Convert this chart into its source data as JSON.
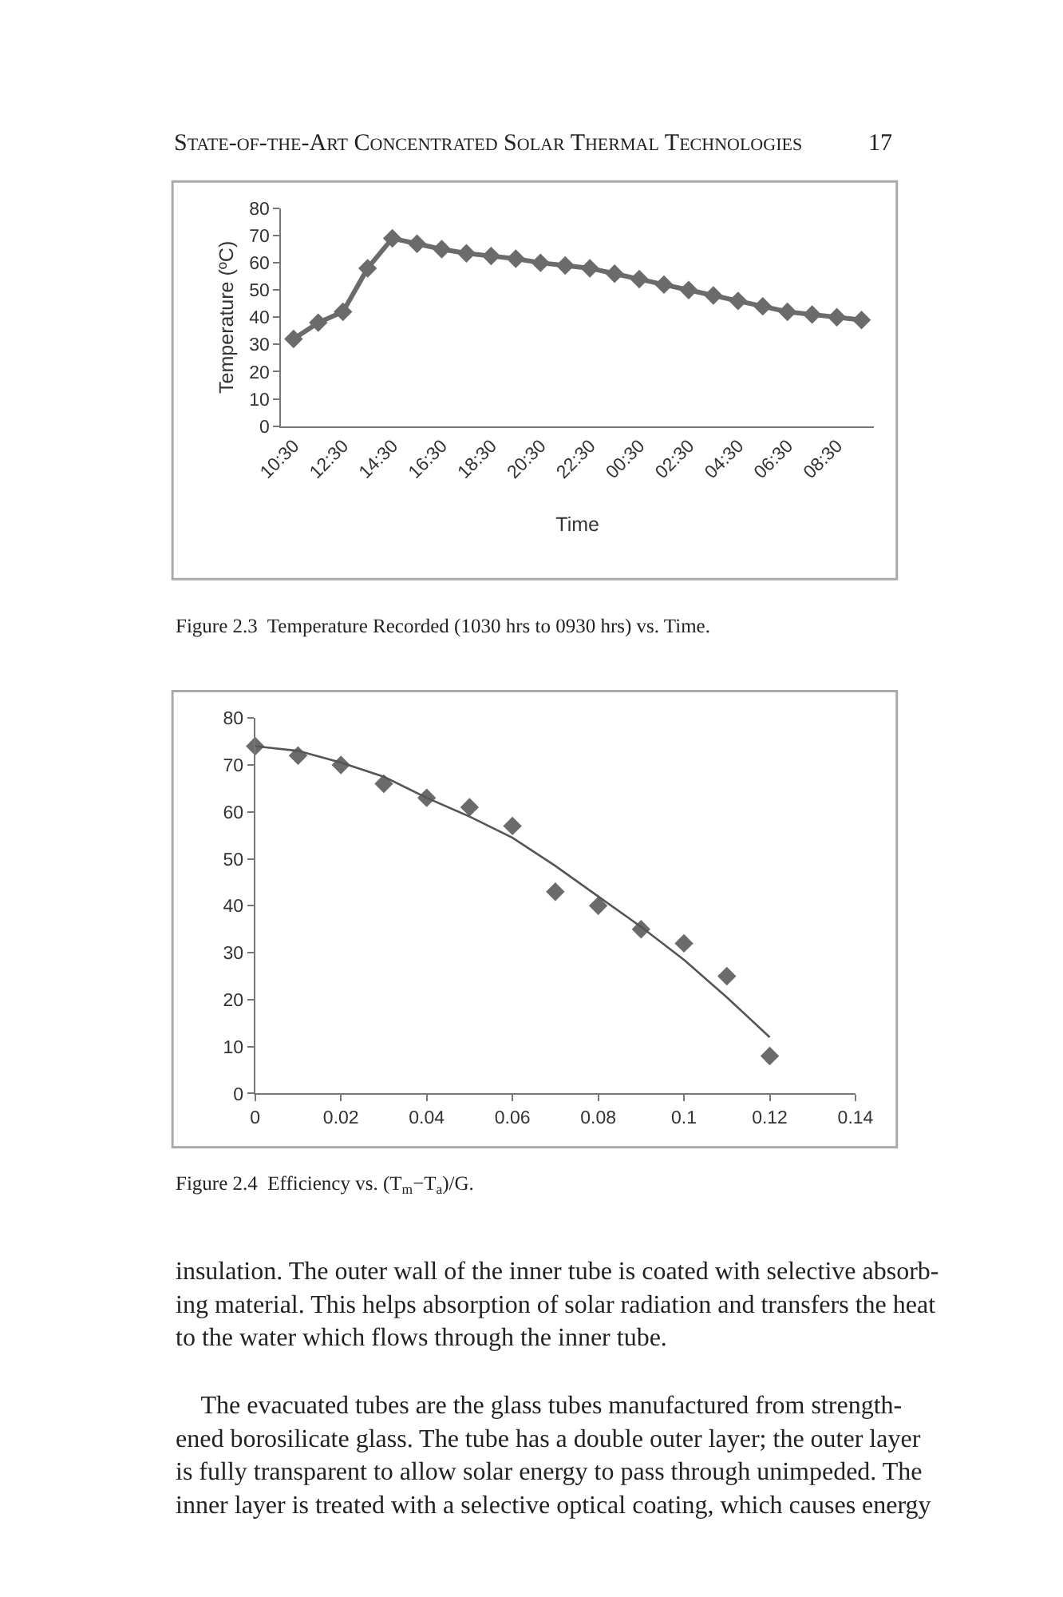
{
  "chart_data": [
    {
      "type": "line",
      "xlabel": "Time",
      "ylabel": "Temperature (ºC)",
      "categories": [
        "10:30",
        null,
        "12:30",
        null,
        "14:30",
        null,
        "16:30",
        null,
        "18:30",
        null,
        "20:30",
        null,
        "22:30",
        null,
        "00:30",
        null,
        "02:30",
        null,
        "04:30",
        null,
        "06:30",
        null,
        "08:30",
        null
      ],
      "series": [
        {
          "color": "#6b6b6b",
          "values": [
            32,
            38,
            42,
            58,
            69,
            67,
            65,
            63.5,
            62.5,
            61.5,
            60,
            59,
            58,
            56,
            54,
            52,
            50,
            48,
            46,
            44,
            42,
            41,
            40,
            39
          ]
        }
      ],
      "ylim": [
        0,
        80
      ],
      "yticks": [
        0,
        10,
        20,
        30,
        40,
        50,
        60,
        70,
        80
      ],
      "marker": "diamond",
      "annotations": [
        "State-of-the-Art Concentrated Solar Thermal Technologies",
        "17",
        "Figure 2.3  Temperature Recorded (1030 hrs to 0930 hrs) vs. Time."
      ]
    },
    {
      "type": "scatter",
      "series": [
        {
          "type": "scatter",
          "color": "#6b6b6b",
          "x": [
            0,
            0.01,
            0.02,
            0.03,
            0.04,
            0.05,
            0.06,
            0.07,
            0.08,
            0.09,
            0.1,
            0.11,
            0.12
          ],
          "values": [
            74,
            72,
            70,
            66,
            63,
            61,
            57,
            43,
            40,
            35,
            32,
            25,
            8
          ]
        },
        {
          "type": "line",
          "marker": "none",
          "color": "#555555",
          "x": [
            0,
            0.01,
            0.02,
            0.03,
            0.04,
            0.05,
            0.06,
            0.07,
            0.08,
            0.09,
            0.1,
            0.11,
            0.12
          ],
          "values": [
            74,
            73,
            70.5,
            67.5,
            63,
            59,
            54.5,
            48.5,
            42,
            35.5,
            28.5,
            20.5,
            12
          ]
        }
      ],
      "xlim": [
        0,
        0.14
      ],
      "xticks": [
        0,
        0.02,
        0.04,
        0.06,
        0.08,
        0.1,
        0.12,
        0.14
      ],
      "ylim": [
        0,
        80
      ],
      "yticks": [
        0,
        10,
        20,
        30,
        40,
        50,
        60,
        70,
        80
      ],
      "marker": "diamond",
      "annotations": [
        "Figure 2.4  Efficiency vs. (T$_{m}$−T$_{a}$)/G.",
        "insulation. The outer wall of the inner tube is coated with selective absorb-\ning material. This helps absorption of solar radiation and transfers the heat\nto the water which flows through the inner tube.",
        "    The evacuated tubes are the glass tubes manufactured from strength-\nened borosilicate glass. The tube has a double outer layer; the outer layer\nis fully transparent to allow solar energy to pass through unimpeded. The\ninner layer is treated with a selective optical coating, which causes energy"
      ]
    }
  ]
}
